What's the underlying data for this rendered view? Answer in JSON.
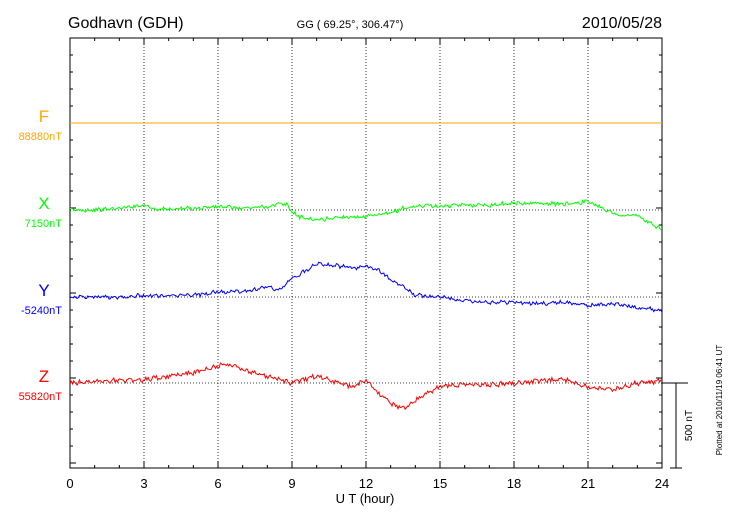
{
  "header": {
    "station": "Godhavn (GDH)",
    "coords": "GG ( 69.25°, 306.47°)",
    "date": "2010/05/28"
  },
  "footer": {
    "plotted": "Plotted at 2010/11/19 06:41 UT"
  },
  "chart_data": {
    "type": "line",
    "title": "Godhavn (GDH)",
    "xlabel": "U T (hour)",
    "ylabel": "",
    "xlim": [
      0,
      24
    ],
    "x_ticks": [
      "0",
      "3",
      "6",
      "9",
      "12",
      "15",
      "18",
      "21",
      "24"
    ],
    "grid": true,
    "scale_bar": {
      "label": "500 nT",
      "nT": 500
    },
    "series": [
      {
        "name": "F",
        "baseline_label": "88880nT",
        "color": "#ffa500",
        "x": [
          0,
          24
        ],
        "y": [
          0,
          0
        ]
      },
      {
        "name": "X",
        "baseline_label": "7150nT",
        "color": "#00ff00",
        "x": [
          0,
          1,
          2,
          3,
          3.5,
          4,
          5,
          6,
          7,
          8,
          8.5,
          8.8,
          9,
          9.3,
          10,
          11,
          12,
          13,
          13.5,
          14,
          14.5,
          15,
          16,
          17,
          18,
          19,
          20,
          21,
          21.5,
          22,
          22.5,
          23,
          23.5,
          24
        ],
        "y": [
          0,
          0,
          10,
          30,
          5,
          5,
          10,
          20,
          10,
          20,
          35,
          30,
          -10,
          -40,
          -60,
          -40,
          -40,
          -20,
          10,
          20,
          30,
          20,
          30,
          30,
          40,
          40,
          35,
          50,
          20,
          -20,
          -35,
          -30,
          -80,
          -110
        ]
      },
      {
        "name": "Y",
        "baseline_label": "-5240nT",
        "color": "#0000ff",
        "x": [
          0,
          1,
          2,
          3,
          4,
          5,
          6,
          7,
          8,
          8.5,
          9,
          9.5,
          10,
          10.5,
          11,
          11.5,
          12,
          12.5,
          13,
          13.5,
          14,
          15,
          16,
          17,
          18,
          19,
          20,
          21,
          22,
          23,
          24
        ],
        "y": [
          0,
          0,
          0,
          10,
          5,
          10,
          30,
          30,
          60,
          40,
          110,
          150,
          200,
          190,
          180,
          170,
          180,
          160,
          100,
          60,
          10,
          0,
          -20,
          -30,
          -30,
          -40,
          -30,
          -50,
          -40,
          -60,
          -80
        ]
      },
      {
        "name": "Z",
        "baseline_label": "55820nT",
        "color": "#ff0000",
        "x": [
          0,
          1,
          2,
          3,
          4,
          5,
          5.5,
          6,
          6.5,
          7,
          8,
          9,
          9.5,
          10,
          10.5,
          11,
          11.5,
          12,
          12.5,
          13,
          13.5,
          14,
          15,
          16,
          17,
          18,
          19,
          20,
          21,
          22,
          23,
          24
        ],
        "y": [
          0,
          10,
          15,
          20,
          40,
          60,
          80,
          100,
          110,
          80,
          40,
          0,
          20,
          40,
          20,
          -10,
          -20,
          20,
          -60,
          -120,
          -150,
          -100,
          -20,
          -10,
          -10,
          0,
          10,
          20,
          -20,
          -40,
          0,
          10
        ]
      }
    ]
  }
}
